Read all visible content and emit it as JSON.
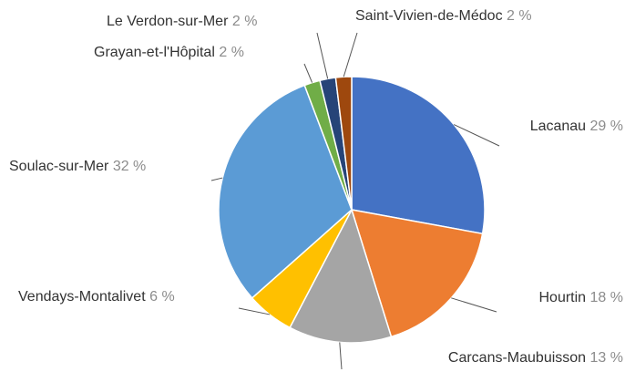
{
  "chart_data": {
    "type": "pie",
    "categories": [
      "Lacanau",
      "Hourtin",
      "Carcans-Maubuisson",
      "Vendays-Montalivet",
      "Soulac-sur-Mer",
      "Grayan-et-l'Hôpital",
      "Le Verdon-sur-Mer",
      "Saint-Vivien-de-Médoc"
    ],
    "values": [
      29,
      18,
      13,
      6,
      32,
      2,
      2,
      2
    ],
    "value_labels": [
      "29 %",
      "18 %",
      "13 %",
      "6 %",
      "32 %",
      "2 %",
      "2 %",
      "2 %"
    ],
    "colors": [
      "#4472c4",
      "#ed7d31",
      "#a5a5a5",
      "#ffc000",
      "#5b9bd5",
      "#70ad47",
      "#264478",
      "#9e480e"
    ]
  }
}
